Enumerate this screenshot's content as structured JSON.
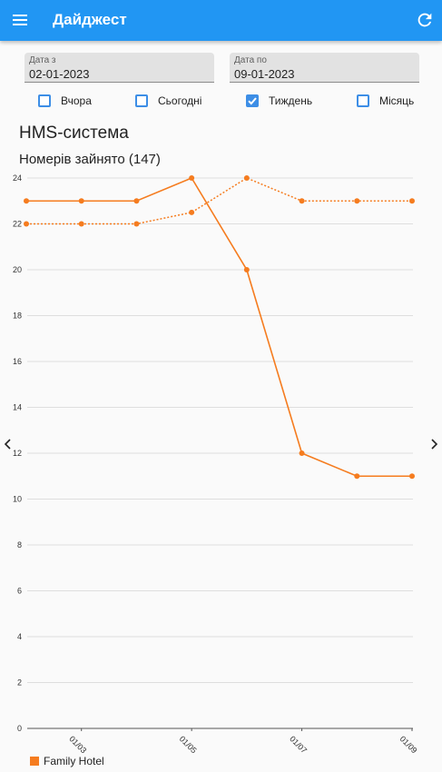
{
  "header": {
    "title": "Дайджест"
  },
  "filters": {
    "date_from": {
      "label": "Дата з",
      "value": "02-01-2023"
    },
    "date_to": {
      "label": "Дата по",
      "value": "09-01-2023"
    },
    "periods": [
      {
        "label": "Вчора",
        "checked": false
      },
      {
        "label": "Сьогодні",
        "checked": false
      },
      {
        "label": "Тиждень",
        "checked": true
      },
      {
        "label": "Місяць",
        "checked": false
      }
    ]
  },
  "section_title": "HMS-система",
  "chart_title": "Номерів зайнято (147)",
  "colors": {
    "appbar": "#2196f3",
    "series": "#f57c1f",
    "checkbox": "#3d8ee6"
  },
  "chart_data": {
    "type": "line",
    "title": "Номерів зайнято (147)",
    "xlabel": "",
    "ylabel": "",
    "ylim": [
      0,
      24
    ],
    "yticks": [
      0,
      2,
      4,
      6,
      8,
      10,
      12,
      14,
      16,
      18,
      20,
      22,
      24
    ],
    "x": [
      "01/02",
      "01/03",
      "01/04",
      "01/05",
      "01/06",
      "01/07",
      "01/08",
      "01/09"
    ],
    "xtick_labels": [
      "01/03",
      "01/05",
      "01/07",
      "01/09"
    ],
    "series": [
      {
        "name": "Family Hotel",
        "style": "solid",
        "values": [
          23,
          23,
          23,
          24,
          20,
          12,
          11,
          11
        ]
      },
      {
        "style": "dotted",
        "values": [
          22,
          22,
          22,
          22.5,
          24,
          23,
          23,
          23
        ]
      }
    ],
    "legend": [
      "Family Hotel"
    ],
    "legend_position": "bottom-left",
    "grid": true
  }
}
